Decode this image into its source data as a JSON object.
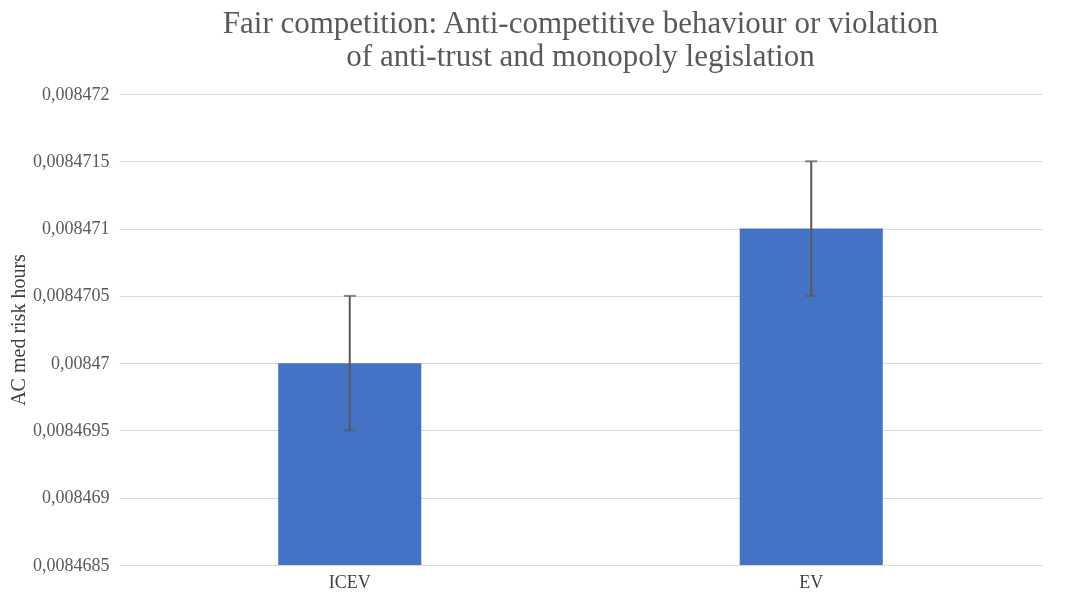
{
  "chart_data": {
    "type": "bar",
    "title": "Fair competition: Anti-competitive behaviour or violation of anti-trust and monopoly legislation",
    "ylabel": "AC med risk hours",
    "categories": [
      "ICEV",
      "EV"
    ],
    "values": [
      0.00847,
      0.008471
    ],
    "errors": [
      5e-07,
      5e-07
    ],
    "color": "#4472c4",
    "ylim": [
      0.0084685,
      0.008472
    ],
    "yticks": [
      {
        "value": 0.0084685,
        "label": "0,0084685"
      },
      {
        "value": 0.008469,
        "label": "0,008469"
      },
      {
        "value": 0.0084695,
        "label": "0,0084695"
      },
      {
        "value": 0.00847,
        "label": "0,00847"
      },
      {
        "value": 0.0084705,
        "label": "0,0084705"
      },
      {
        "value": 0.008471,
        "label": "0,008471"
      },
      {
        "value": 0.0084715,
        "label": "0,0084715"
      },
      {
        "value": 0.008472,
        "label": "0,008472"
      }
    ],
    "grid": "y"
  }
}
